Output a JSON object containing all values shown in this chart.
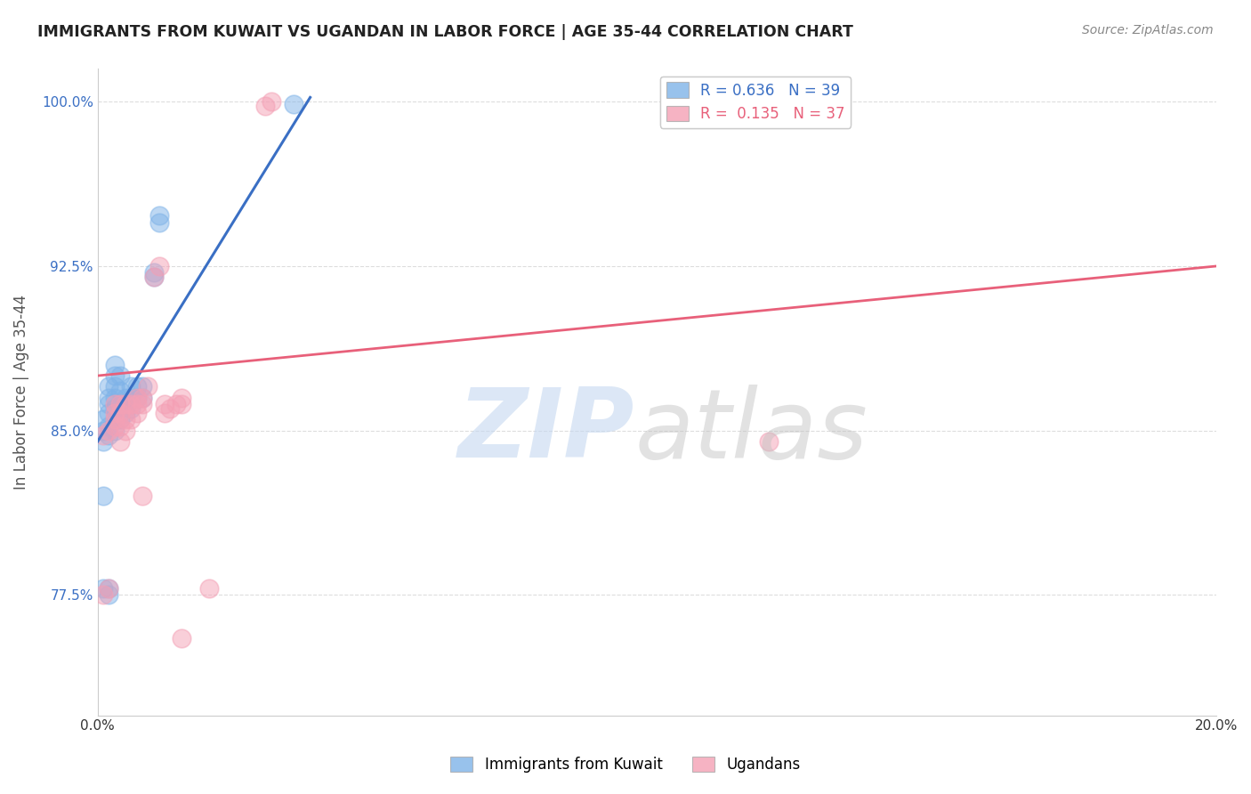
{
  "title": "IMMIGRANTS FROM KUWAIT VS UGANDAN IN LABOR FORCE | AGE 35-44 CORRELATION CHART",
  "source": "Source: ZipAtlas.com",
  "ylabel": "In Labor Force | Age 35-44",
  "xlim": [
    0.0,
    0.2
  ],
  "ylim": [
    0.72,
    1.015
  ],
  "xticks": [
    0.0,
    0.04,
    0.08,
    0.12,
    0.16,
    0.2
  ],
  "xticklabels": [
    "0.0%",
    "",
    "",
    "",
    "",
    "20.0%"
  ],
  "yticks": [
    0.775,
    0.85,
    0.925,
    1.0
  ],
  "yticklabels": [
    "77.5%",
    "85.0%",
    "92.5%",
    "100.0%"
  ],
  "legend1_label": "R = 0.636   N = 39",
  "legend2_label": "R =  0.135   N = 37",
  "legend_bottom_label1": "Immigrants from Kuwait",
  "legend_bottom_label2": "Ugandans",
  "blue_color": "#7fb3e8",
  "pink_color": "#f4a0b5",
  "blue_line_color": "#3a6fc4",
  "pink_line_color": "#e8607a",
  "blue_scatter": [
    [
      0.001,
      0.845
    ],
    [
      0.001,
      0.85
    ],
    [
      0.001,
      0.855
    ],
    [
      0.002,
      0.848
    ],
    [
      0.002,
      0.852
    ],
    [
      0.002,
      0.858
    ],
    [
      0.002,
      0.862
    ],
    [
      0.002,
      0.865
    ],
    [
      0.002,
      0.87
    ],
    [
      0.003,
      0.85
    ],
    [
      0.003,
      0.855
    ],
    [
      0.003,
      0.86
    ],
    [
      0.003,
      0.865
    ],
    [
      0.003,
      0.87
    ],
    [
      0.003,
      0.875
    ],
    [
      0.003,
      0.88
    ],
    [
      0.004,
      0.855
    ],
    [
      0.004,
      0.862
    ],
    [
      0.004,
      0.868
    ],
    [
      0.004,
      0.875
    ],
    [
      0.005,
      0.858
    ],
    [
      0.005,
      0.862
    ],
    [
      0.005,
      0.865
    ],
    [
      0.006,
      0.86
    ],
    [
      0.006,
      0.865
    ],
    [
      0.006,
      0.87
    ],
    [
      0.007,
      0.865
    ],
    [
      0.007,
      0.87
    ],
    [
      0.008,
      0.865
    ],
    [
      0.008,
      0.87
    ],
    [
      0.002,
      0.778
    ],
    [
      0.002,
      0.775
    ],
    [
      0.001,
      0.778
    ],
    [
      0.01,
      0.92
    ],
    [
      0.01,
      0.922
    ],
    [
      0.011,
      0.945
    ],
    [
      0.011,
      0.948
    ],
    [
      0.035,
      0.999
    ],
    [
      0.001,
      0.82
    ]
  ],
  "pink_scatter": [
    [
      0.001,
      0.848
    ],
    [
      0.001,
      0.775
    ],
    [
      0.002,
      0.85
    ],
    [
      0.002,
      0.778
    ],
    [
      0.003,
      0.852
    ],
    [
      0.003,
      0.855
    ],
    [
      0.003,
      0.858
    ],
    [
      0.003,
      0.862
    ],
    [
      0.004,
      0.845
    ],
    [
      0.004,
      0.852
    ],
    [
      0.004,
      0.858
    ],
    [
      0.004,
      0.862
    ],
    [
      0.005,
      0.85
    ],
    [
      0.005,
      0.855
    ],
    [
      0.005,
      0.862
    ],
    [
      0.006,
      0.855
    ],
    [
      0.006,
      0.862
    ],
    [
      0.007,
      0.858
    ],
    [
      0.007,
      0.862
    ],
    [
      0.007,
      0.865
    ],
    [
      0.008,
      0.862
    ],
    [
      0.008,
      0.865
    ],
    [
      0.008,
      0.82
    ],
    [
      0.009,
      0.87
    ],
    [
      0.01,
      0.92
    ],
    [
      0.011,
      0.925
    ],
    [
      0.012,
      0.858
    ],
    [
      0.012,
      0.862
    ],
    [
      0.013,
      0.86
    ],
    [
      0.014,
      0.862
    ],
    [
      0.015,
      0.862
    ],
    [
      0.015,
      0.865
    ],
    [
      0.02,
      0.778
    ],
    [
      0.03,
      0.998
    ],
    [
      0.031,
      1.0
    ],
    [
      0.12,
      0.845
    ],
    [
      0.015,
      0.755
    ]
  ],
  "blue_line": [
    [
      0.0,
      0.845
    ],
    [
      0.038,
      1.002
    ]
  ],
  "pink_line": [
    [
      0.0,
      0.875
    ],
    [
      0.2,
      0.925
    ]
  ],
  "watermark_zip_color": "#c5d8f0",
  "watermark_atlas_color": "#c0c0c0",
  "background_color": "#ffffff",
  "grid_color": "#dddddd",
  "title_color": "#222222",
  "source_color": "#888888",
  "ylabel_color": "#555555",
  "ytick_color": "#3a6fc4"
}
